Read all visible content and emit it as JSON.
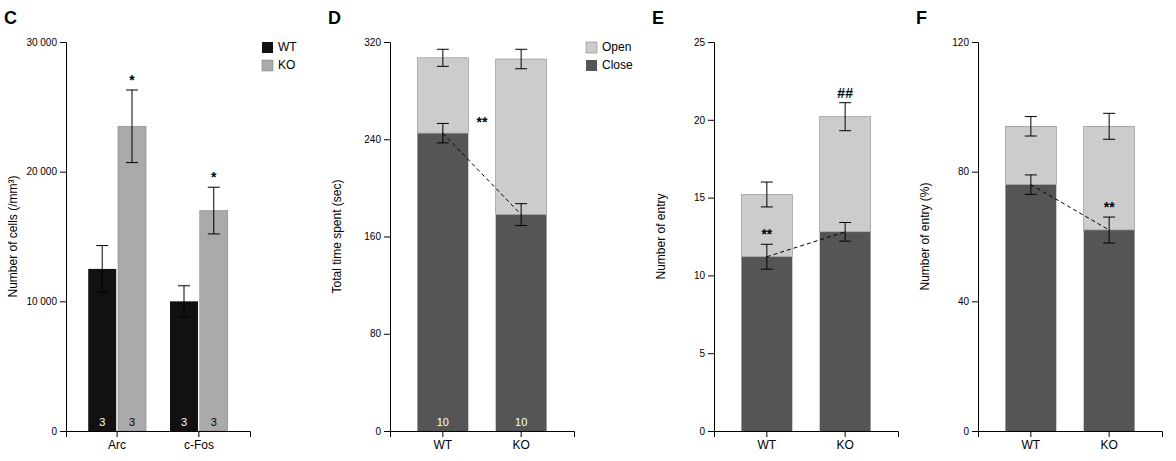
{
  "chart_data": [
    {
      "type": "bar",
      "title": "C",
      "categories": [
        "Arc",
        "c-Fos"
      ],
      "series": [
        {
          "name": "WT",
          "color": "#111111",
          "values": [
            12500,
            10000
          ],
          "errors": [
            1800,
            1200
          ],
          "n_labels": [
            "3",
            "3"
          ]
        },
        {
          "name": "KO",
          "color": "#aaaaaa",
          "values": [
            23500,
            17000
          ],
          "errors": [
            2800,
            1800
          ],
          "n_labels": [
            "3",
            "3"
          ],
          "sig_labels": [
            "*",
            "*"
          ]
        }
      ],
      "ylabel": "Number of cells (/mm³)",
      "ylim": [
        0,
        30000
      ],
      "yticks": [
        0,
        {
          "value": 10000,
          "label": "10 000"
        },
        {
          "value": 20000,
          "label": "20 000"
        },
        {
          "value": 30000,
          "label": "30 000"
        }
      ],
      "legend": "upper right",
      "grid": false
    },
    {
      "type": "bar",
      "title": "D",
      "stacked": true,
      "categories": [
        "WT",
        "KO"
      ],
      "series": [
        {
          "name": "Close",
          "color": "#555555",
          "values": [
            245,
            178
          ],
          "errors": [
            8,
            9
          ],
          "n_labels": [
            "10",
            "10"
          ]
        },
        {
          "name": "Open",
          "color": "#cccccc",
          "values": [
            62,
            128
          ],
          "errors": [
            7,
            8
          ]
        }
      ],
      "ylabel": "Total time spent (sec)",
      "ylim": [
        0,
        320
      ],
      "yticks": [
        0,
        80,
        160,
        240,
        320
      ],
      "sig_label": "**",
      "legend": "upper right",
      "grid": false
    },
    {
      "type": "bar",
      "title": "E",
      "stacked": true,
      "categories": [
        "WT",
        "KO"
      ],
      "series": [
        {
          "color": "#555555",
          "values": [
            11.2,
            12.8
          ],
          "errors": [
            0.8,
            0.6
          ],
          "sig_labels": [
            "**",
            null
          ]
        },
        {
          "color": "#cccccc",
          "values": [
            4.0,
            7.4
          ],
          "errors": [
            0.8,
            0.9
          ],
          "sig_labels": [
            null,
            "##"
          ]
        }
      ],
      "ylabel": "Number of entry",
      "ylim": [
        0,
        25
      ],
      "yticks": [
        0,
        5,
        10,
        15,
        20,
        25
      ],
      "grid": false
    },
    {
      "type": "bar",
      "title": "F",
      "stacked": true,
      "categories": [
        "WT",
        "KO"
      ],
      "series": [
        {
          "color": "#555555",
          "values": [
            76,
            62
          ],
          "errors": [
            3,
            4
          ],
          "sig_labels": [
            null,
            "**"
          ]
        },
        {
          "color": "#cccccc",
          "values": [
            18,
            32
          ],
          "errors": [
            3,
            4
          ]
        }
      ],
      "ylabel": "Number of entry (%)",
      "ylim": [
        0,
        120
      ],
      "yticks": [
        0,
        40,
        80,
        120
      ],
      "grid": false
    }
  ]
}
